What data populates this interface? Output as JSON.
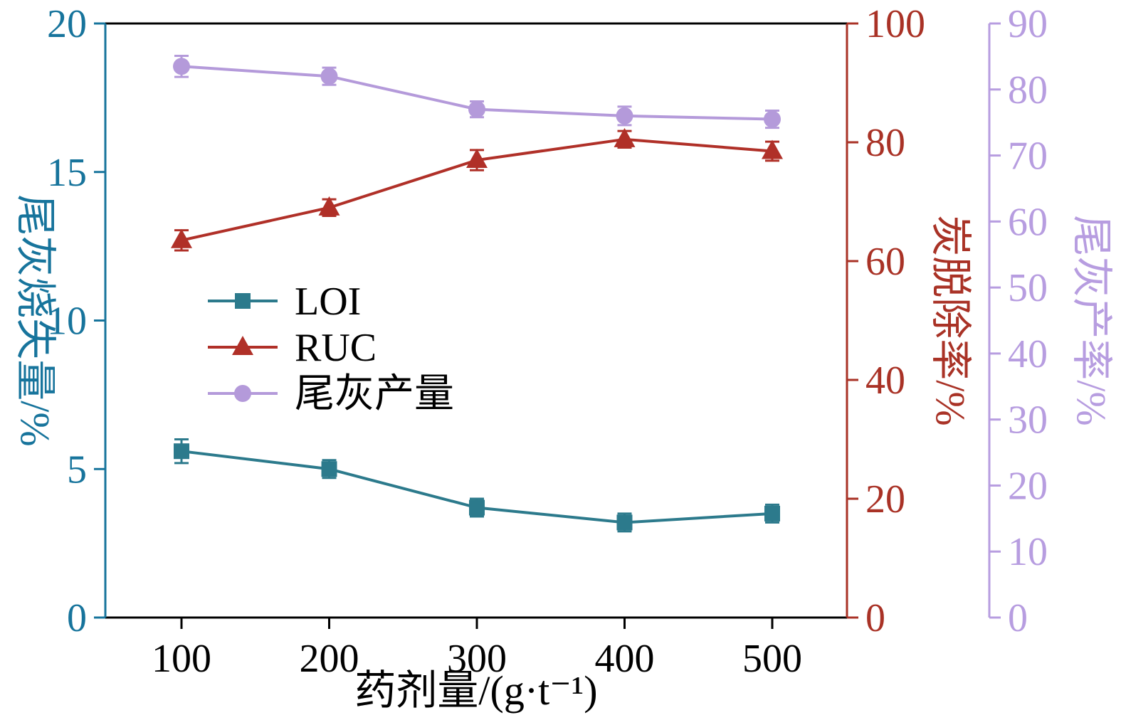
{
  "figure": {
    "background": "#ffffff",
    "frame_color": "#000000"
  },
  "chart_data": {
    "type": "line",
    "x": [
      100,
      200,
      300,
      400,
      500
    ],
    "x_ticks": [
      "100",
      "200",
      "300",
      "400",
      "500"
    ],
    "xlabel": "药剂量/(g·t⁻¹)",
    "grid": false,
    "legend_position": "inside-left-middle",
    "axes": {
      "left": {
        "label": "尾灰烧失量/%",
        "color": "#17749c",
        "range": [
          0,
          20
        ],
        "ticks": [
          0,
          5,
          10,
          15,
          20
        ]
      },
      "right1": {
        "label": "炭脱除率/%",
        "color": "#a93226",
        "range": [
          0,
          100
        ],
        "ticks": [
          0,
          20,
          40,
          60,
          80,
          100
        ]
      },
      "right2": {
        "label": "尾灰产率/%",
        "color": "#b79de0",
        "range": [
          0,
          90
        ],
        "ticks": [
          0,
          10,
          20,
          30,
          40,
          50,
          60,
          70,
          80,
          90
        ]
      }
    },
    "series": [
      {
        "name": "LOI",
        "axis": "left",
        "color": "#2c7a8c",
        "marker": "square",
        "values": [
          5.6,
          5.0,
          3.7,
          3.2,
          3.5
        ],
        "errors": [
          0.4,
          0.3,
          0.3,
          0.3,
          0.3
        ]
      },
      {
        "name": "RUC",
        "axis": "right1",
        "color": "#b03028",
        "marker": "triangle",
        "values": [
          63.5,
          69.0,
          77.0,
          80.5,
          78.5
        ],
        "errors": [
          1.7,
          1.4,
          1.7,
          1.4,
          1.6
        ]
      },
      {
        "name": "尾灰产量",
        "axis": "right2",
        "color": "#b49ada",
        "marker": "circle",
        "values": [
          83.5,
          82.0,
          77.0,
          76.0,
          75.5
        ],
        "errors": [
          1.6,
          1.3,
          1.2,
          1.4,
          1.3
        ]
      }
    ]
  }
}
